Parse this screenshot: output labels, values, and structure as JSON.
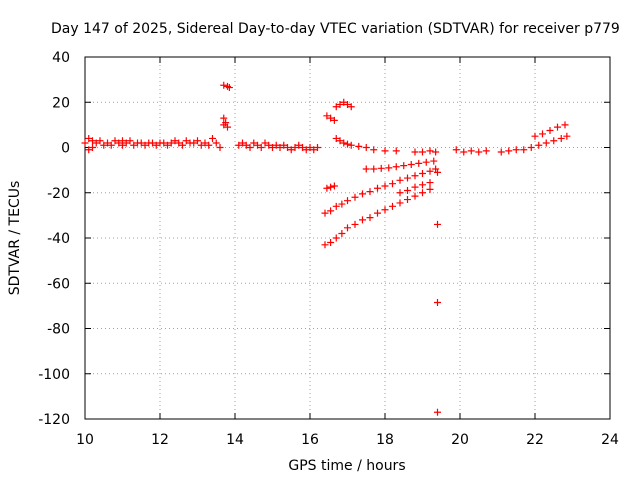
{
  "chart_data": {
    "type": "scatter",
    "title": "Day 147 of 2025, Sidereal Day-to-day VTEC variation (SDTVAR) for receiver p779",
    "xlabel": "GPS time / hours",
    "ylabel": "SDTVAR / TECUs",
    "xlim": [
      10,
      24
    ],
    "ylim": [
      -120,
      40
    ],
    "x_ticks": [
      10,
      12,
      14,
      16,
      18,
      20,
      22,
      24
    ],
    "y_ticks": [
      40,
      20,
      0,
      -20,
      -40,
      -60,
      -80,
      -100,
      -120
    ],
    "grid": true,
    "marker": "+",
    "color": "#ff0000",
    "series": [
      {
        "name": "SDTVAR",
        "points": [
          [
            10.0,
            2
          ],
          [
            10.1,
            4
          ],
          [
            10.1,
            -1
          ],
          [
            10.2,
            3
          ],
          [
            10.2,
            0
          ],
          [
            10.3,
            2
          ],
          [
            10.4,
            3
          ],
          [
            10.5,
            1
          ],
          [
            10.6,
            2
          ],
          [
            10.7,
            1
          ],
          [
            10.8,
            3
          ],
          [
            10.9,
            2
          ],
          [
            11.0,
            1
          ],
          [
            11.0,
            3
          ],
          [
            11.1,
            2
          ],
          [
            11.2,
            3
          ],
          [
            11.3,
            1
          ],
          [
            11.4,
            2
          ],
          [
            11.5,
            2
          ],
          [
            11.6,
            1
          ],
          [
            11.7,
            2
          ],
          [
            11.8,
            2
          ],
          [
            11.9,
            1
          ],
          [
            12.0,
            2
          ],
          [
            12.1,
            2
          ],
          [
            12.2,
            1
          ],
          [
            12.3,
            2
          ],
          [
            12.4,
            3
          ],
          [
            12.5,
            2
          ],
          [
            12.6,
            1
          ],
          [
            12.7,
            3
          ],
          [
            12.8,
            2
          ],
          [
            12.9,
            2
          ],
          [
            13.0,
            3
          ],
          [
            13.1,
            1
          ],
          [
            13.2,
            2
          ],
          [
            13.3,
            1
          ],
          [
            13.4,
            4
          ],
          [
            13.5,
            2
          ],
          [
            13.6,
            0
          ],
          [
            13.7,
            10
          ],
          [
            13.7,
            13
          ],
          [
            13.75,
            11
          ],
          [
            13.8,
            9
          ],
          [
            13.7,
            27.5
          ],
          [
            13.8,
            27
          ],
          [
            13.85,
            26.5
          ],
          [
            14.1,
            1
          ],
          [
            14.2,
            2
          ],
          [
            14.3,
            1
          ],
          [
            14.4,
            0
          ],
          [
            14.5,
            2
          ],
          [
            14.6,
            1
          ],
          [
            14.7,
            0
          ],
          [
            14.8,
            2
          ],
          [
            14.9,
            1
          ],
          [
            15.0,
            0
          ],
          [
            15.1,
            1
          ],
          [
            15.2,
            0
          ],
          [
            15.3,
            1
          ],
          [
            15.4,
            0
          ],
          [
            15.5,
            -1
          ],
          [
            15.6,
            0
          ],
          [
            15.7,
            1
          ],
          [
            15.8,
            0
          ],
          [
            15.9,
            -1
          ],
          [
            16.0,
            0
          ],
          [
            16.1,
            -1
          ],
          [
            16.2,
            0
          ],
          [
            16.45,
            14
          ],
          [
            16.55,
            13
          ],
          [
            16.65,
            12
          ],
          [
            16.7,
            18
          ],
          [
            16.8,
            19
          ],
          [
            16.9,
            20
          ],
          [
            17.0,
            19
          ],
          [
            17.1,
            18
          ],
          [
            16.7,
            4
          ],
          [
            16.8,
            3
          ],
          [
            16.9,
            2
          ],
          [
            17.0,
            1.5
          ],
          [
            17.1,
            1
          ],
          [
            17.3,
            0.5
          ],
          [
            17.5,
            0
          ],
          [
            17.7,
            -1
          ],
          [
            18.0,
            -1.5
          ],
          [
            18.3,
            -1.5
          ],
          [
            16.45,
            -18
          ],
          [
            16.55,
            -17.5
          ],
          [
            16.65,
            -17
          ],
          [
            17.5,
            -9.5
          ],
          [
            17.7,
            -9.5
          ],
          [
            17.9,
            -9.2
          ],
          [
            18.1,
            -9
          ],
          [
            18.3,
            -8.5
          ],
          [
            18.5,
            -8
          ],
          [
            18.7,
            -7.5
          ],
          [
            18.9,
            -7
          ],
          [
            19.1,
            -6.5
          ],
          [
            19.3,
            -6
          ],
          [
            16.4,
            -29
          ],
          [
            16.55,
            -28
          ],
          [
            16.7,
            -26
          ],
          [
            16.85,
            -25
          ],
          [
            17.0,
            -23.5
          ],
          [
            17.2,
            -22
          ],
          [
            17.4,
            -20.5
          ],
          [
            17.6,
            -19.5
          ],
          [
            17.8,
            -18
          ],
          [
            18.0,
            -17
          ],
          [
            18.2,
            -16
          ],
          [
            18.4,
            -14.5
          ],
          [
            18.6,
            -13.5
          ],
          [
            18.8,
            -12.5
          ],
          [
            19.0,
            -11.5
          ],
          [
            19.2,
            -10.5
          ],
          [
            19.35,
            -9.5
          ],
          [
            18.4,
            -20
          ],
          [
            18.6,
            -19
          ],
          [
            18.8,
            -17.5
          ],
          [
            19.0,
            -16.5
          ],
          [
            19.2,
            -15.5
          ],
          [
            16.4,
            -43
          ],
          [
            16.55,
            -42
          ],
          [
            16.7,
            -40
          ],
          [
            16.85,
            -38
          ],
          [
            17.0,
            -35.5
          ],
          [
            17.2,
            -34
          ],
          [
            17.4,
            -32
          ],
          [
            17.6,
            -31
          ],
          [
            17.8,
            -29
          ],
          [
            18.0,
            -27.5
          ],
          [
            18.2,
            -26
          ],
          [
            18.4,
            -24.5
          ],
          [
            18.6,
            -23
          ],
          [
            18.8,
            -21.5
          ],
          [
            19.0,
            -20
          ],
          [
            19.2,
            -18.5
          ],
          [
            18.8,
            -2
          ],
          [
            19.0,
            -2
          ],
          [
            19.2,
            -1.5
          ],
          [
            19.35,
            -2
          ],
          [
            19.4,
            -11
          ],
          [
            19.4,
            -34
          ],
          [
            19.4,
            -68.5
          ],
          [
            19.4,
            -117
          ],
          [
            19.9,
            -1
          ],
          [
            20.1,
            -2
          ],
          [
            20.3,
            -1.5
          ],
          [
            20.5,
            -2
          ],
          [
            20.7,
            -1.5
          ],
          [
            21.1,
            -2
          ],
          [
            21.3,
            -1.5
          ],
          [
            21.5,
            -1
          ],
          [
            21.7,
            -1
          ],
          [
            21.9,
            0
          ],
          [
            22.1,
            1
          ],
          [
            22.3,
            2
          ],
          [
            22.5,
            3
          ],
          [
            22.7,
            4
          ],
          [
            22.85,
            5
          ],
          [
            22.0,
            5
          ],
          [
            22.2,
            6
          ],
          [
            22.4,
            7.5
          ],
          [
            22.6,
            9
          ],
          [
            22.8,
            10
          ]
        ]
      }
    ]
  }
}
